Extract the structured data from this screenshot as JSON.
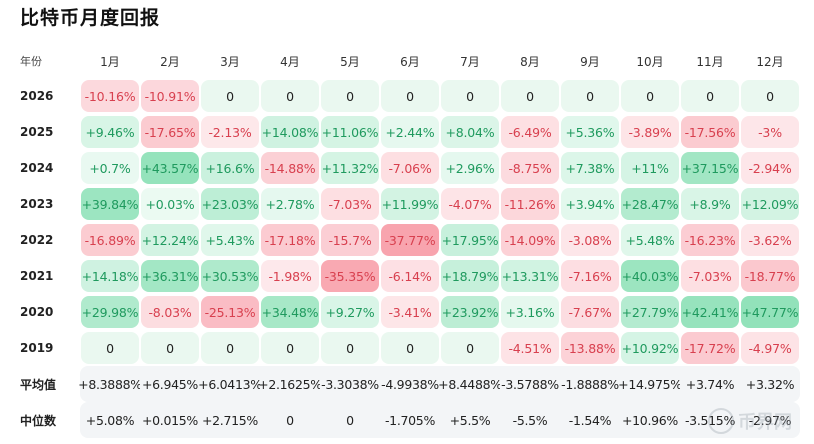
{
  "title": "比特币月度回报",
  "chart_data": {
    "type": "table",
    "title": "比特币月度回报",
    "corner_label": "年份",
    "months": [
      "1月",
      "2月",
      "3月",
      "4月",
      "5月",
      "6月",
      "7月",
      "8月",
      "9月",
      "10月",
      "11月",
      "12月"
    ],
    "rows": [
      {
        "year": "2026",
        "values": [
          "-10.16%",
          "-10.91%",
          "0",
          "0",
          "0",
          "0",
          "0",
          "0",
          "0",
          "0",
          "0",
          "0"
        ]
      },
      {
        "year": "2025",
        "values": [
          "+9.46%",
          "-17.65%",
          "-2.13%",
          "+14.08%",
          "+11.06%",
          "+2.44%",
          "+8.04%",
          "-6.49%",
          "+5.36%",
          "-3.89%",
          "-17.56%",
          "-3%"
        ]
      },
      {
        "year": "2024",
        "values": [
          "+0.7%",
          "+43.57%",
          "+16.6%",
          "-14.88%",
          "+11.32%",
          "-7.06%",
          "+2.96%",
          "-8.75%",
          "+7.38%",
          "+11%",
          "+37.15%",
          "-2.94%"
        ]
      },
      {
        "year": "2023",
        "values": [
          "+39.84%",
          "+0.03%",
          "+23.03%",
          "+2.78%",
          "-7.03%",
          "+11.99%",
          "-4.07%",
          "-11.26%",
          "+3.94%",
          "+28.47%",
          "+8.9%",
          "+12.09%"
        ]
      },
      {
        "year": "2022",
        "values": [
          "-16.89%",
          "+12.24%",
          "+5.43%",
          "-17.18%",
          "-15.7%",
          "-37.77%",
          "+17.95%",
          "-14.09%",
          "-3.08%",
          "+5.48%",
          "-16.23%",
          "-3.62%"
        ]
      },
      {
        "year": "2021",
        "values": [
          "+14.18%",
          "+36.31%",
          "+30.53%",
          "-1.98%",
          "-35.35%",
          "-6.14%",
          "+18.79%",
          "+13.31%",
          "-7.16%",
          "+40.03%",
          "-7.03%",
          "-18.77%"
        ]
      },
      {
        "year": "2020",
        "values": [
          "+29.98%",
          "-8.03%",
          "-25.13%",
          "+34.48%",
          "+9.27%",
          "-3.41%",
          "+23.92%",
          "+3.16%",
          "-7.67%",
          "+27.79%",
          "+42.41%",
          "+47.77%"
        ]
      },
      {
        "year": "2019",
        "values": [
          "0",
          "0",
          "0",
          "0",
          "0",
          "0",
          "0",
          "-4.51%",
          "-13.88%",
          "+10.92%",
          "-17.72%",
          "-4.97%"
        ]
      }
    ],
    "stats": [
      {
        "label": "平均值",
        "values": [
          "+8.3888%",
          "+6.945%",
          "+6.0413%",
          "+2.1625%",
          "-3.3038%",
          "-4.9938%",
          "+8.4488%",
          "-3.5788%",
          "-1.8888%",
          "+14.975%",
          "+3.74%",
          "+3.32%"
        ]
      },
      {
        "label": "中位数",
        "values": [
          "+5.08%",
          "+0.015%",
          "+2.715%",
          "0",
          "0",
          "-1.705%",
          "+5.5%",
          "-5.5%",
          "-1.54%",
          "+10.96%",
          "-3.515%",
          "-2.97%"
        ]
      }
    ]
  },
  "colors": {
    "pos_text": "#1f9a5e",
    "neg_text": "#d8404f",
    "zero_text": "#222222",
    "zero_bg": "#eaf8f0",
    "stat_bg": "#f3f5f7"
  },
  "watermark": {
    "icon": "coin-logo-icon",
    "text": "币界网"
  }
}
